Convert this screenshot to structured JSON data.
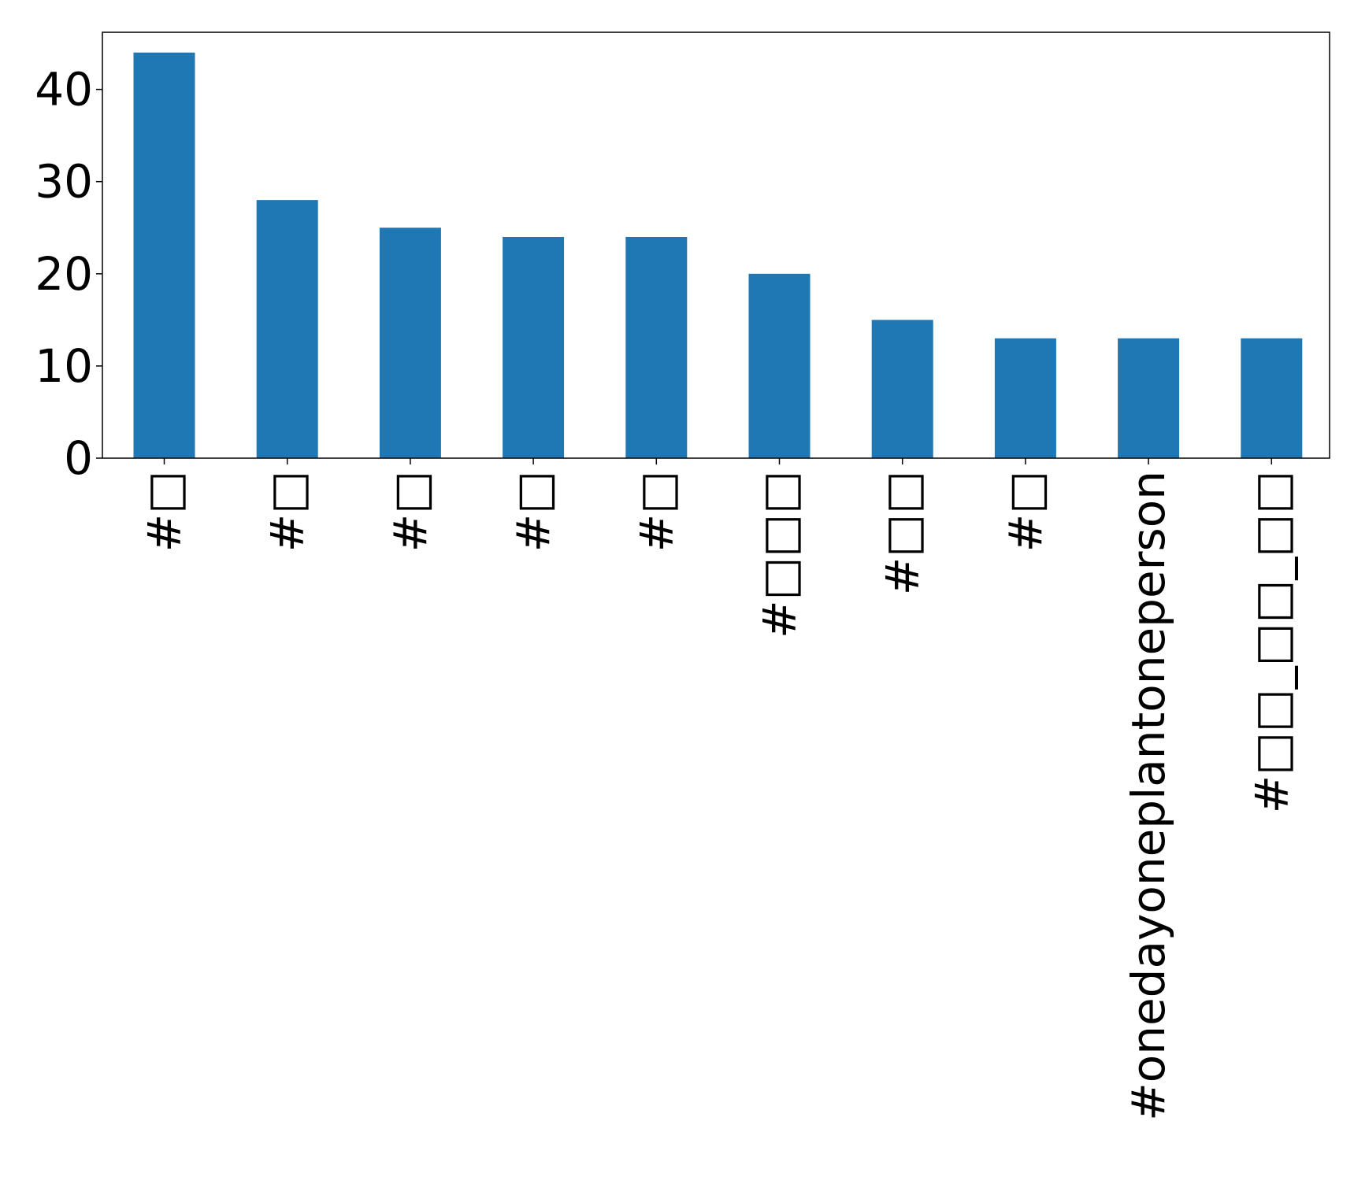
{
  "chart_data": {
    "type": "bar",
    "title": "",
    "xlabel": "",
    "ylabel": "",
    "categories": [
      "#□",
      "#□",
      "#□",
      "#□",
      "#□",
      "#□□□",
      "#□□",
      "#□",
      "#onedayoneplantoneperson",
      "#□□_□□_□□"
    ],
    "values": [
      44,
      28,
      25,
      24,
      24,
      20,
      15,
      13,
      13,
      13
    ],
    "ylim": [
      0,
      46.2
    ],
    "yticks": [
      0,
      10,
      20,
      30,
      40
    ],
    "ytick_labels": [
      "0",
      "10",
      "20",
      "30",
      "40"
    ],
    "bar_color": "#1f77b4",
    "grid": false,
    "legend": "none"
  }
}
